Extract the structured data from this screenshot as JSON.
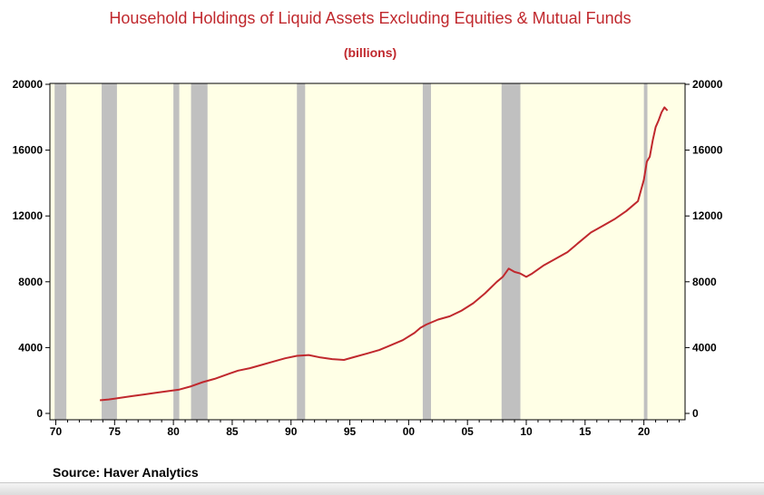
{
  "chart_data": {
    "type": "line",
    "title": "Household Holdings of Liquid Assets Excluding Equities & Mutual Funds",
    "subtitle": "(billions)",
    "xlabel": "",
    "ylabel": "",
    "x_range": [
      1969.5,
      2023.5
    ],
    "ylim": [
      0,
      20000
    ],
    "y_ticks": [
      0,
      4000,
      8000,
      12000,
      16000,
      20000
    ],
    "y_tick_labels": [
      "0",
      "4000",
      "8000",
      "12000",
      "16000",
      "20000"
    ],
    "x_ticks": [
      1970,
      1975,
      1980,
      1985,
      1990,
      1995,
      2000,
      2005,
      2010,
      2015,
      2020
    ],
    "x_tick_labels": [
      "70",
      "75",
      "80",
      "85",
      "90",
      "95",
      "00",
      "05",
      "10",
      "15",
      "20"
    ],
    "grid": false,
    "plot_background": "#ffffe6",
    "recession_color": "#c0c0c0",
    "line_color": "#c0282d",
    "recessions": [
      [
        1969.9,
        1970.9
      ],
      [
        1973.9,
        1975.2
      ],
      [
        1980.0,
        1980.5
      ],
      [
        1981.5,
        1982.9
      ],
      [
        1990.5,
        1991.2
      ],
      [
        2001.2,
        2001.9
      ],
      [
        2007.9,
        2009.5
      ],
      [
        2020.0,
        2020.3
      ]
    ],
    "series": [
      {
        "name": "",
        "x": [
          1973.75,
          1974.5,
          1975.5,
          1976.5,
          1977.5,
          1978.5,
          1979.5,
          1980.5,
          1981.5,
          1982.5,
          1983.5,
          1984.5,
          1985.5,
          1986.5,
          1987.5,
          1988.5,
          1989.5,
          1990.5,
          1991.5,
          1992.5,
          1993.5,
          1994.5,
          1995.5,
          1996.5,
          1997.5,
          1998.5,
          1999.5,
          2000.5,
          2001.0,
          2001.5,
          2002.5,
          2003.5,
          2004.5,
          2005.5,
          2006.5,
          2007.5,
          2008.0,
          2008.5,
          2009.0,
          2009.5,
          2010.0,
          2010.5,
          2011.5,
          2012.5,
          2013.5,
          2014.5,
          2015.5,
          2016.5,
          2017.5,
          2018.5,
          2019.0,
          2019.5,
          2020.0,
          2020.25,
          2020.5,
          2020.75,
          2021.0,
          2021.25,
          2021.5,
          2021.75,
          2022.0
        ],
        "values": [
          800,
          850,
          950,
          1050,
          1150,
          1250,
          1350,
          1450,
          1650,
          1900,
          2100,
          2350,
          2600,
          2750,
          2950,
          3150,
          3350,
          3500,
          3550,
          3400,
          3300,
          3250,
          3450,
          3650,
          3850,
          4150,
          4450,
          4900,
          5200,
          5400,
          5700,
          5900,
          6250,
          6700,
          7300,
          8000,
          8300,
          8800,
          8600,
          8500,
          8300,
          8500,
          9000,
          9400,
          9800,
          10400,
          11000,
          11400,
          11800,
          12300,
          12600,
          12900,
          14200,
          15300,
          15600,
          16600,
          17400,
          17800,
          18300,
          18600,
          18400
        ]
      }
    ]
  },
  "source": {
    "label": "Source:",
    "value": "Haver Analytics"
  }
}
